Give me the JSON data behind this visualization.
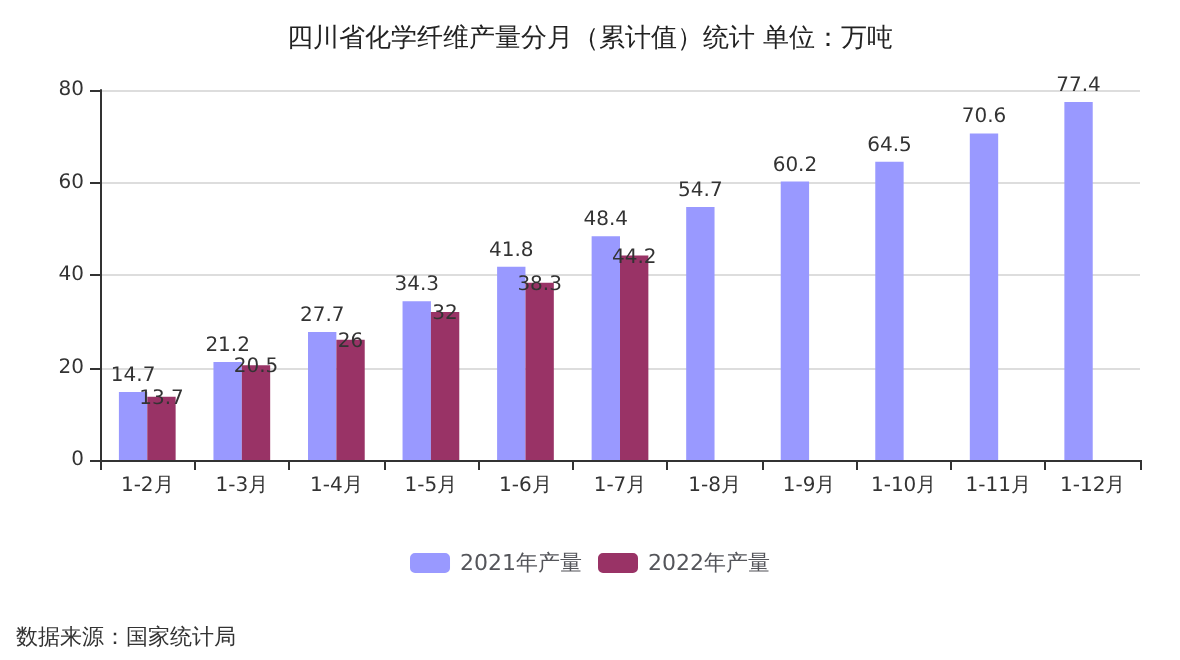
{
  "chart_data": {
    "type": "bar",
    "title": "四川省化学纤维产量分月（累计值）统计 单位：万吨",
    "categories": [
      "1-2月",
      "1-3月",
      "1-4月",
      "1-5月",
      "1-6月",
      "1-7月",
      "1-8月",
      "1-9月",
      "1-10月",
      "1-11月",
      "1-12月"
    ],
    "series": [
      {
        "name": "2021年产量",
        "color": "#9999ff",
        "values": [
          14.7,
          21.2,
          27.7,
          34.3,
          41.8,
          48.4,
          54.7,
          60.2,
          64.5,
          70.6,
          77.4
        ]
      },
      {
        "name": "2022年产量",
        "color": "#993366",
        "values": [
          13.7,
          20.5,
          26,
          32,
          38.3,
          44.2,
          null,
          null,
          null,
          null,
          null
        ]
      }
    ],
    "ylim": [
      0,
      80
    ],
    "yticks": [
      0,
      20,
      40,
      60,
      80
    ],
    "grid": "y",
    "legend": "bottom",
    "data_labels": true,
    "annotations": [
      "数据来源：国家统计局"
    ]
  }
}
